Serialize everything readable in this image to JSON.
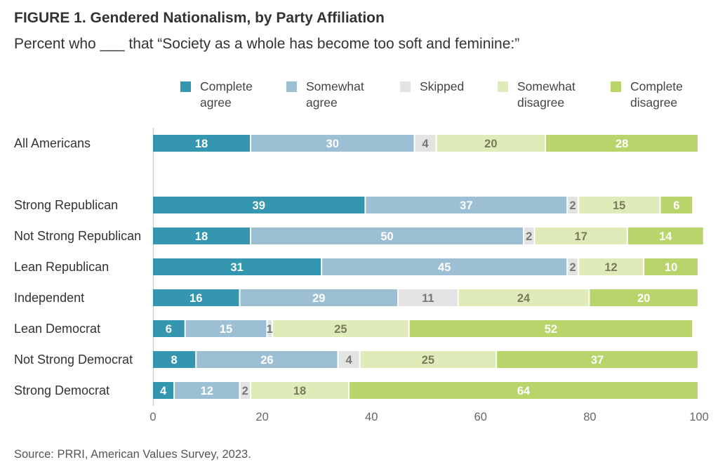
{
  "title": "FIGURE 1.  Gendered Nationalism, by Party Affiliation",
  "subtitle": "Percent who ___ that “Society as a whole has become too soft and feminine:”",
  "source": "Source: PRRI, American Values Survey, 2023.",
  "chart_data": {
    "type": "bar",
    "orientation": "horizontal",
    "stacked": true,
    "title": "FIGURE 1.  Gendered Nationalism, by Party Affiliation",
    "subtitle": "Percent who ___ that “Society as a whole has become too soft and feminine:”",
    "xlim": [
      0,
      100
    ],
    "xticks": [
      0,
      20,
      40,
      60,
      80,
      100
    ],
    "grid": false,
    "legend_position": "top",
    "categories": [
      "All Americans",
      "Strong Republican",
      "Not Strong Republican",
      "Lean Republican",
      "Independent",
      "Lean Democrat",
      "Not Strong Democrat",
      "Strong Democrat"
    ],
    "series": [
      {
        "name": "Complete agree",
        "legend_lines": [
          "Complete",
          "agree"
        ],
        "color": "#3596B0",
        "label_color": "#ffffff",
        "values": [
          18,
          39,
          18,
          31,
          16,
          6,
          8,
          4
        ]
      },
      {
        "name": "Somewhat agree",
        "legend_lines": [
          "Somewhat",
          "agree"
        ],
        "color": "#9DBFD3",
        "label_color": "#ffffff",
        "values": [
          30,
          37,
          50,
          45,
          29,
          15,
          26,
          12
        ]
      },
      {
        "name": "Skipped",
        "legend_lines": [
          "Skipped"
        ],
        "color": "#E3E3E3",
        "label_color": "#777777",
        "values": [
          4,
          2,
          2,
          2,
          11,
          1,
          4,
          2
        ]
      },
      {
        "name": "Somewhat disagree",
        "legend_lines": [
          "Somewhat",
          "disagree"
        ],
        "color": "#DFEBB8",
        "label_color": "#7A7A5C",
        "values": [
          20,
          15,
          17,
          12,
          24,
          25,
          25,
          18
        ]
      },
      {
        "name": "Complete disagree",
        "legend_lines": [
          "Complete",
          "disagree"
        ],
        "color": "#B9D46A",
        "label_color": "#ffffff",
        "values": [
          28,
          6,
          14,
          10,
          20,
          52,
          37,
          64
        ]
      }
    ]
  }
}
